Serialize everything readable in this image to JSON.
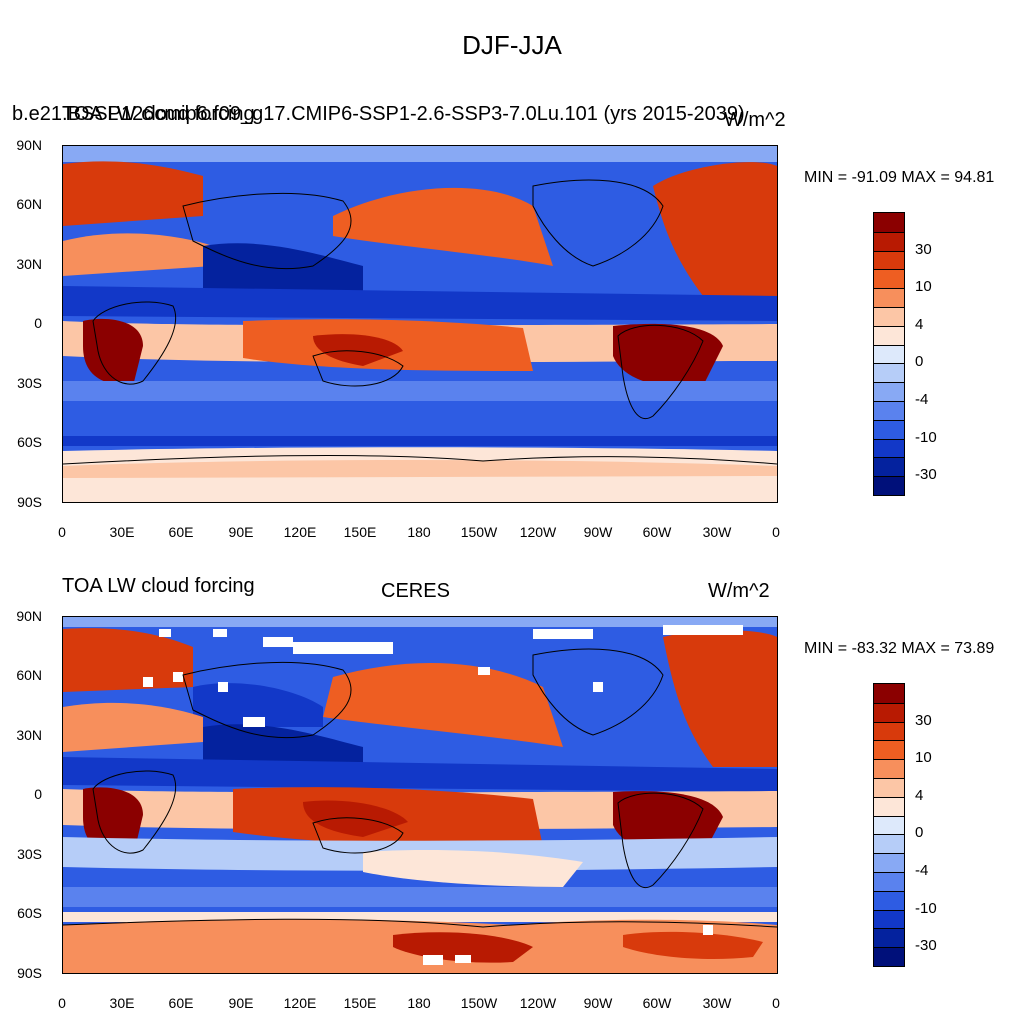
{
  "title": "DJF-JJA",
  "panels": [
    {
      "left_label": "b.e21.BSSP126cmip6.f09_g17.CMIP6-SSP1-2.6-SSP3-7.0Lu.101 (yrs 2015-2039)",
      "left_label_overlay": "TOA LW cloud forcing",
      "center_label": "",
      "right_label": "W/m^2",
      "stats": "MIN = -91.09 MAX =  94.81"
    },
    {
      "left_label": "TOA LW cloud forcing",
      "center_label": "CERES",
      "right_label": "W/m^2",
      "stats": "MIN = -83.32 MAX =  73.89"
    }
  ],
  "map_axes": {
    "lat_labels": [
      "90N",
      "60N",
      "30N",
      "0",
      "30S",
      "60S",
      "90S"
    ],
    "lon_labels": [
      "0",
      "30E",
      "60E",
      "90E",
      "120E",
      "150E",
      "180",
      "150W",
      "120W",
      "90W",
      "60W",
      "30W",
      "0"
    ]
  },
  "colorbar": {
    "labels": [
      "30",
      "10",
      "4",
      "0",
      "-4",
      "-10",
      "-30"
    ],
    "colors": [
      "#8b0000",
      "#b81a02",
      "#d83a0c",
      "#ee5e22",
      "#f78f5c",
      "#fcc6a6",
      "#fde6d8",
      "#dde9fb",
      "#b6cdf8",
      "#88a9f4",
      "#5a82ee",
      "#2e5ce3",
      "#1238c8",
      "#04229e",
      "#00107a"
    ]
  },
  "colors": {
    "deep_red": "#8b0000",
    "red": "#d83a0c",
    "orange": "#f78f5c",
    "peach": "#fde6d8",
    "pale_blue": "#dde9fb",
    "light_blue": "#88a9f4",
    "blue": "#2e5ce3",
    "deep_blue": "#04229e"
  }
}
